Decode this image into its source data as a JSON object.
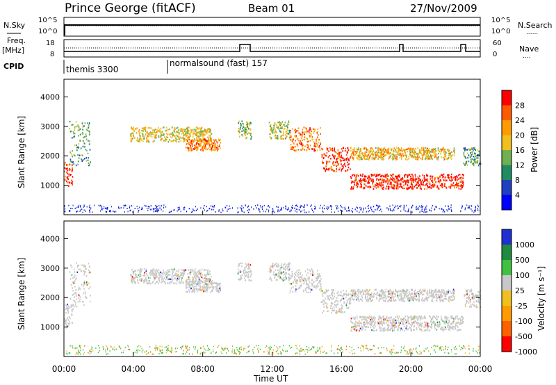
{
  "header": {
    "site": "Prince George (fitACF)",
    "beam": "Beam 01",
    "date": "27/Nov/2009"
  },
  "top_panel": {
    "left_label": "N.Sky",
    "left_ticks": [
      "10^5",
      "10^0"
    ],
    "right_ticks": [
      "10^5",
      "10^0"
    ],
    "right_label": "N.Search",
    "right_label_marker": "......"
  },
  "freq_panel": {
    "left_label_line1": "Freq.",
    "left_label_line2": "[MHz]",
    "left_ticks": [
      "18",
      "8"
    ],
    "right_ticks": [
      "60",
      "0"
    ],
    "right_label": "Nave",
    "right_label_marker": "...."
  },
  "cpid_panel": {
    "label": "CPID",
    "modes": [
      {
        "start_hour": 0.0,
        "text": "themis 3300"
      },
      {
        "start_hour": 6.0,
        "text": "normalsound (fast) 157"
      }
    ]
  },
  "power_panel": {
    "ylabel": "Slant Range [km]",
    "yticks": [
      "4000",
      "3000",
      "2000",
      "1000"
    ],
    "colorbar_label": "Power [dB]",
    "colorbar_ticks": [
      "28",
      "24",
      "20",
      "16",
      "12",
      "8",
      "4"
    ],
    "colorbar_colors": [
      "#ff0000",
      "#ff5a00",
      "#ff9a00",
      "#f0c020",
      "#70b050",
      "#208a60",
      "#2040c0",
      "#0000ff"
    ]
  },
  "velocity_panel": {
    "ylabel": "Slant Range [km]",
    "yticks": [
      "4000",
      "3000",
      "2000",
      "1000"
    ],
    "colorbar_label": "Velocity [m s⁻¹]",
    "colorbar_ticks": [
      "1000",
      "500",
      "100",
      "25",
      "-25",
      "-100",
      "-500",
      "-1000"
    ],
    "colorbar_colors": [
      "#2030d0",
      "#208a40",
      "#40c040",
      "#c8c8c8",
      "#f0c020",
      "#ff9a00",
      "#ff6000",
      "#ff0000"
    ]
  },
  "x_axis": {
    "label": "Time UT",
    "ticks": [
      "00:00",
      "04:00",
      "08:00",
      "12:00",
      "16:00",
      "20:00",
      "00:00"
    ]
  },
  "chart_data": {
    "type": "heatmap",
    "x_range_hours": [
      0,
      24
    ],
    "y_range_km": [
      0,
      4600
    ],
    "power_echo_bands": [
      {
        "t0": 0.0,
        "t1": 0.5,
        "r0": 1000,
        "r1": 1800,
        "db": 26
      },
      {
        "t0": 0.3,
        "t1": 1.5,
        "r0": 1700,
        "r1": 3200,
        "db": 10
      },
      {
        "t0": 3.8,
        "t1": 8.5,
        "r0": 2500,
        "r1": 3000,
        "db": 16
      },
      {
        "t0": 7.0,
        "t1": 9.0,
        "r0": 2200,
        "r1": 2600,
        "db": 22
      },
      {
        "t0": 10.0,
        "t1": 10.8,
        "r0": 2600,
        "r1": 3200,
        "db": 12
      },
      {
        "t0": 11.8,
        "t1": 13.0,
        "r0": 2600,
        "r1": 3200,
        "db": 14
      },
      {
        "t0": 13.0,
        "t1": 14.8,
        "r0": 2200,
        "r1": 3000,
        "db": 22
      },
      {
        "t0": 14.8,
        "t1": 16.5,
        "r0": 1500,
        "r1": 2300,
        "db": 26
      },
      {
        "t0": 16.5,
        "t1": 23.0,
        "r0": 900,
        "r1": 1400,
        "db": 27
      },
      {
        "t0": 16.5,
        "t1": 22.5,
        "r0": 1900,
        "r1": 2300,
        "db": 18
      },
      {
        "t0": 23.0,
        "t1": 24.0,
        "r0": 1700,
        "r1": 2300,
        "db": 10
      }
    ],
    "velocity_dominant": "-25 to 25"
  }
}
